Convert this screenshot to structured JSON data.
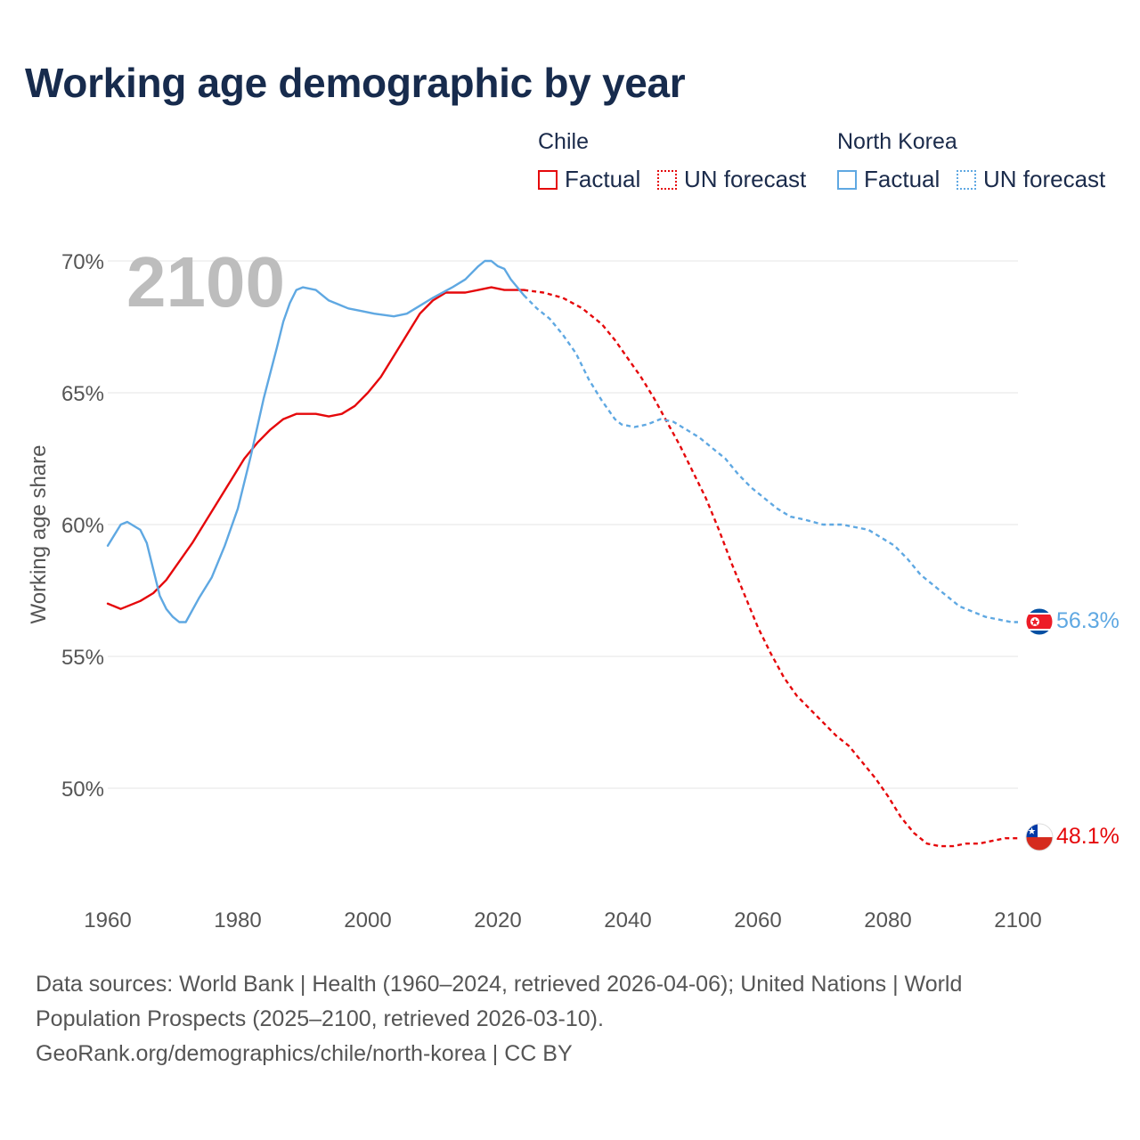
{
  "title": "Working age demographic by year",
  "legend": {
    "groups": [
      {
        "name": "Chile",
        "color": "#e5080b",
        "items": [
          "Factual",
          "UN forecast"
        ]
      },
      {
        "name": "North Korea",
        "color": "#5fa8e2",
        "items": [
          "Factual",
          "UN forecast"
        ]
      }
    ]
  },
  "footer": {
    "line1": "Data sources: World Bank | Health (1960–2024, retrieved 2026-04-06); United Nations | World",
    "line2": "Population Prospects (2025–2100, retrieved 2026-03-10).",
    "line3": "GeoRank.org/demographics/chile/north-korea | CC BY"
  },
  "chart_data": {
    "type": "line",
    "title": "Working age demographic by year",
    "xlabel": "",
    "ylabel": "Working age share",
    "current_year_label": "2100",
    "xlim": [
      1960,
      2100
    ],
    "ylim": [
      45,
      70
    ],
    "x_ticks": [
      1960,
      1980,
      2000,
      2020,
      2040,
      2060,
      2080,
      2100
    ],
    "x_tick_labels": [
      "1960",
      "1980",
      "2000",
      "2020",
      "2040",
      "2060",
      "2080",
      "2100"
    ],
    "y_ticks": [
      50,
      55,
      60,
      65,
      70
    ],
    "y_tick_labels": [
      "50%",
      "55%",
      "60%",
      "65%",
      "70%"
    ],
    "grid": true,
    "legend_position": "top-right",
    "series": [
      {
        "name": "Chile",
        "color": "#e5080b",
        "end_label": "48.1%",
        "flag": "chile-flag",
        "factual": [
          [
            1960,
            57.0
          ],
          [
            1962,
            56.8
          ],
          [
            1965,
            57.1
          ],
          [
            1967,
            57.4
          ],
          [
            1969,
            57.9
          ],
          [
            1971,
            58.6
          ],
          [
            1973,
            59.3
          ],
          [
            1975,
            60.1
          ],
          [
            1977,
            60.9
          ],
          [
            1979,
            61.7
          ],
          [
            1981,
            62.5
          ],
          [
            1983,
            63.1
          ],
          [
            1985,
            63.6
          ],
          [
            1987,
            64.0
          ],
          [
            1989,
            64.2
          ],
          [
            1992,
            64.2
          ],
          [
            1994,
            64.1
          ],
          [
            1996,
            64.2
          ],
          [
            1998,
            64.5
          ],
          [
            2000,
            65.0
          ],
          [
            2002,
            65.6
          ],
          [
            2004,
            66.4
          ],
          [
            2006,
            67.2
          ],
          [
            2008,
            68.0
          ],
          [
            2010,
            68.5
          ],
          [
            2012,
            68.8
          ],
          [
            2015,
            68.8
          ],
          [
            2017,
            68.9
          ],
          [
            2019,
            69.0
          ],
          [
            2021,
            68.9
          ],
          [
            2024,
            68.9
          ]
        ],
        "forecast": [
          [
            2024,
            68.9
          ],
          [
            2027,
            68.8
          ],
          [
            2030,
            68.6
          ],
          [
            2033,
            68.2
          ],
          [
            2036,
            67.6
          ],
          [
            2038,
            67.0
          ],
          [
            2040,
            66.3
          ],
          [
            2042,
            65.6
          ],
          [
            2044,
            64.8
          ],
          [
            2046,
            63.9
          ],
          [
            2048,
            63.0
          ],
          [
            2050,
            62.0
          ],
          [
            2052,
            61.0
          ],
          [
            2054,
            59.8
          ],
          [
            2056,
            58.5
          ],
          [
            2058,
            57.3
          ],
          [
            2060,
            56.1
          ],
          [
            2062,
            55.1
          ],
          [
            2064,
            54.2
          ],
          [
            2066,
            53.5
          ],
          [
            2068,
            53.0
          ],
          [
            2070,
            52.5
          ],
          [
            2072,
            52.0
          ],
          [
            2074,
            51.6
          ],
          [
            2076,
            51.0
          ],
          [
            2078,
            50.4
          ],
          [
            2080,
            49.7
          ],
          [
            2082,
            48.9
          ],
          [
            2084,
            48.3
          ],
          [
            2086,
            47.9
          ],
          [
            2088,
            47.8
          ],
          [
            2090,
            47.8
          ],
          [
            2092,
            47.9
          ],
          [
            2094,
            47.9
          ],
          [
            2096,
            48.0
          ],
          [
            2098,
            48.1
          ],
          [
            2100,
            48.1
          ]
        ]
      },
      {
        "name": "North Korea",
        "color": "#5fa8e2",
        "end_label": "56.3%",
        "flag": "north-korea-flag",
        "factual": [
          [
            1960,
            59.2
          ],
          [
            1962,
            60.0
          ],
          [
            1963,
            60.1
          ],
          [
            1965,
            59.8
          ],
          [
            1966,
            59.3
          ],
          [
            1967,
            58.3
          ],
          [
            1968,
            57.3
          ],
          [
            1969,
            56.8
          ],
          [
            1970,
            56.5
          ],
          [
            1971,
            56.3
          ],
          [
            1972,
            56.3
          ],
          [
            1974,
            57.2
          ],
          [
            1976,
            58.0
          ],
          [
            1978,
            59.2
          ],
          [
            1980,
            60.6
          ],
          [
            1982,
            62.6
          ],
          [
            1984,
            64.8
          ],
          [
            1986,
            66.7
          ],
          [
            1987,
            67.7
          ],
          [
            1988,
            68.4
          ],
          [
            1989,
            68.9
          ],
          [
            1990,
            69.0
          ],
          [
            1992,
            68.9
          ],
          [
            1994,
            68.5
          ],
          [
            1997,
            68.2
          ],
          [
            1999,
            68.1
          ],
          [
            2001,
            68.0
          ],
          [
            2004,
            67.9
          ],
          [
            2006,
            68.0
          ],
          [
            2008,
            68.3
          ],
          [
            2010,
            68.6
          ],
          [
            2013,
            69.0
          ],
          [
            2015,
            69.3
          ],
          [
            2017,
            69.8
          ],
          [
            2018,
            70.0
          ],
          [
            2019,
            70.0
          ],
          [
            2020,
            69.8
          ],
          [
            2021,
            69.7
          ],
          [
            2022,
            69.3
          ],
          [
            2024,
            68.7
          ]
        ],
        "forecast": [
          [
            2024,
            68.7
          ],
          [
            2026,
            68.2
          ],
          [
            2028,
            67.8
          ],
          [
            2030,
            67.2
          ],
          [
            2032,
            66.5
          ],
          [
            2034,
            65.5
          ],
          [
            2036,
            64.7
          ],
          [
            2038,
            64.0
          ],
          [
            2039,
            63.8
          ],
          [
            2041,
            63.7
          ],
          [
            2043,
            63.8
          ],
          [
            2045,
            64.0
          ],
          [
            2047,
            63.9
          ],
          [
            2049,
            63.6
          ],
          [
            2051,
            63.3
          ],
          [
            2053,
            62.9
          ],
          [
            2055,
            62.5
          ],
          [
            2057,
            61.9
          ],
          [
            2059,
            61.4
          ],
          [
            2061,
            61.0
          ],
          [
            2063,
            60.6
          ],
          [
            2065,
            60.3
          ],
          [
            2067,
            60.2
          ],
          [
            2070,
            60.0
          ],
          [
            2073,
            60.0
          ],
          [
            2075,
            59.9
          ],
          [
            2077,
            59.8
          ],
          [
            2079,
            59.5
          ],
          [
            2081,
            59.2
          ],
          [
            2083,
            58.7
          ],
          [
            2085,
            58.1
          ],
          [
            2087,
            57.7
          ],
          [
            2089,
            57.3
          ],
          [
            2091,
            56.9
          ],
          [
            2093,
            56.7
          ],
          [
            2095,
            56.5
          ],
          [
            2097,
            56.4
          ],
          [
            2099,
            56.3
          ],
          [
            2100,
            56.3
          ]
        ]
      }
    ]
  }
}
